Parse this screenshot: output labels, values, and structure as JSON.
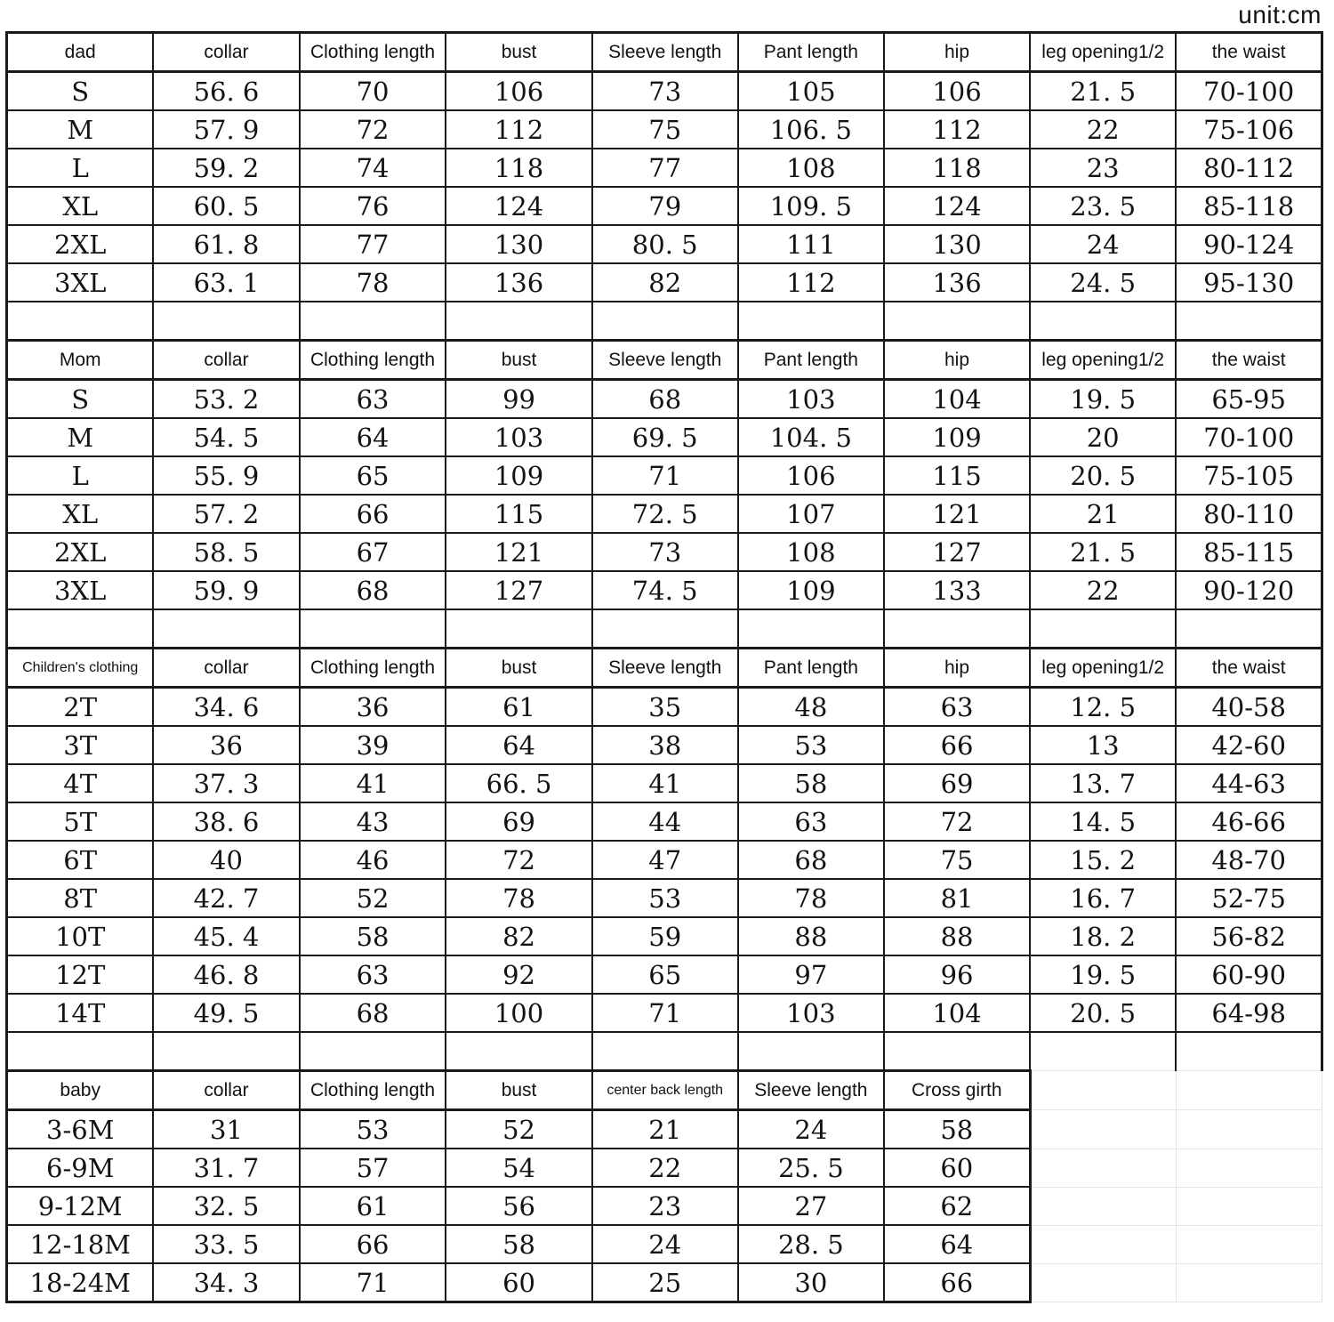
{
  "unit_label": "unit:cm",
  "colors": {
    "border": "#1a1a1a",
    "text": "#131313",
    "faint_grid": "#e4e4e4",
    "background": "#ffffff"
  },
  "chart_data": {
    "type": "table",
    "title": "unit:cm",
    "columns": 9,
    "sections": [
      {
        "id": "dad",
        "header": [
          "dad",
          "collar",
          "Clothing length",
          "bust",
          "Sleeve length",
          "Pant length",
          "hip",
          "leg opening1/2",
          "the waist"
        ],
        "rows": [
          [
            "S",
            "56. 6",
            "70",
            "106",
            "73",
            "105",
            "106",
            "21. 5",
            "70-100"
          ],
          [
            "M",
            "57. 9",
            "72",
            "112",
            "75",
            "106. 5",
            "112",
            "22",
            "75-106"
          ],
          [
            "L",
            "59. 2",
            "74",
            "118",
            "77",
            "108",
            "118",
            "23",
            "80-112"
          ],
          [
            "XL",
            "60. 5",
            "76",
            "124",
            "79",
            "109. 5",
            "124",
            "23. 5",
            "85-118"
          ],
          [
            "2XL",
            "61. 8",
            "77",
            "130",
            "80. 5",
            "111",
            "130",
            "24",
            "90-124"
          ],
          [
            "3XL",
            "63. 1",
            "78",
            "136",
            "82",
            "112",
            "136",
            "24. 5",
            "95-130"
          ]
        ],
        "blank_row_after": true
      },
      {
        "id": "mom",
        "header": [
          "Mom",
          "collar",
          "Clothing length",
          "bust",
          "Sleeve length",
          "Pant length",
          "hip",
          "leg opening1/2",
          "the waist"
        ],
        "rows": [
          [
            "S",
            "53. 2",
            "63",
            "99",
            "68",
            "103",
            "104",
            "19. 5",
            "65-95"
          ],
          [
            "M",
            "54. 5",
            "64",
            "103",
            "69. 5",
            "104. 5",
            "109",
            "20",
            "70-100"
          ],
          [
            "L",
            "55. 9",
            "65",
            "109",
            "71",
            "106",
            "115",
            "20. 5",
            "75-105"
          ],
          [
            "XL",
            "57. 2",
            "66",
            "115",
            "72. 5",
            "107",
            "121",
            "21",
            "80-110"
          ],
          [
            "2XL",
            "58. 5",
            "67",
            "121",
            "73",
            "108",
            "127",
            "21. 5",
            "85-115"
          ],
          [
            "3XL",
            "59. 9",
            "68",
            "127",
            "74. 5",
            "109",
            "133",
            "22",
            "90-120"
          ]
        ],
        "blank_row_after": true
      },
      {
        "id": "children",
        "header": [
          "Children's clothing",
          "collar",
          "Clothing length",
          "bust",
          "Sleeve length",
          "Pant length",
          "hip",
          "leg opening1/2",
          "the waist"
        ],
        "rows": [
          [
            "2T",
            "34. 6",
            "36",
            "61",
            "35",
            "48",
            "63",
            "12. 5",
            "40-58"
          ],
          [
            "3T",
            "36",
            "39",
            "64",
            "38",
            "53",
            "66",
            "13",
            "42-60"
          ],
          [
            "4T",
            "37. 3",
            "41",
            "66. 5",
            "41",
            "58",
            "69",
            "13. 7",
            "44-63"
          ],
          [
            "5T",
            "38. 6",
            "43",
            "69",
            "44",
            "63",
            "72",
            "14. 5",
            "46-66"
          ],
          [
            "6T",
            "40",
            "46",
            "72",
            "47",
            "68",
            "75",
            "15. 2",
            "48-70"
          ],
          [
            "8T",
            "42. 7",
            "52",
            "78",
            "53",
            "78",
            "81",
            "16. 7",
            "52-75"
          ],
          [
            "10T",
            "45. 4",
            "58",
            "82",
            "59",
            "88",
            "88",
            "18. 2",
            "56-82"
          ],
          [
            "12T",
            "46. 8",
            "63",
            "92",
            "65",
            "97",
            "96",
            "19. 5",
            "60-90"
          ],
          [
            "14T",
            "49. 5",
            "68",
            "100",
            "71",
            "103",
            "104",
            "20. 5",
            "64-98"
          ]
        ],
        "blank_row_after": true
      },
      {
        "id": "baby",
        "header": [
          "baby",
          "collar",
          "Clothing length",
          "bust",
          "center back length",
          "Sleeve length",
          "Cross girth"
        ],
        "rows": [
          [
            "3-6M",
            "31",
            "53",
            "52",
            "21",
            "24",
            "58"
          ],
          [
            "6-9M",
            "31. 7",
            "57",
            "54",
            "22",
            "25. 5",
            "60"
          ],
          [
            "9-12M",
            "32. 5",
            "61",
            "56",
            "23",
            "27",
            "62"
          ],
          [
            "12-18M",
            "33. 5",
            "66",
            "58",
            "24",
            "28. 5",
            "64"
          ],
          [
            "18-24M",
            "34. 3",
            "71",
            "60",
            "25",
            "30",
            "66"
          ]
        ],
        "blank_row_after": false
      }
    ]
  }
}
